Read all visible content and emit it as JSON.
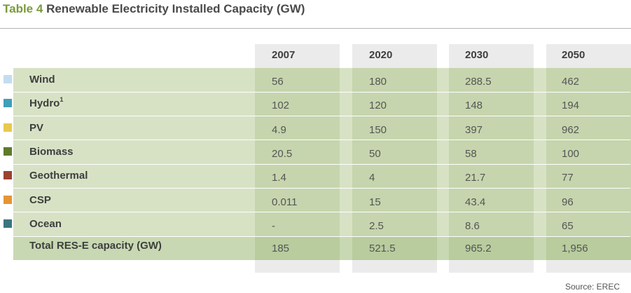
{
  "title": {
    "number": "Table 4",
    "text": "Renewable Electricity Installed Capacity (GW)"
  },
  "columns": [
    "2007",
    "2020",
    "2030",
    "2050"
  ],
  "rows": [
    {
      "label": "Wind",
      "sup": "",
      "color": "#c5dcef",
      "values": [
        "56",
        "180",
        "288.5",
        "462"
      ]
    },
    {
      "label": "Hydro",
      "sup": "1",
      "color": "#3fa0b8",
      "values": [
        "102",
        "120",
        "148",
        "194"
      ]
    },
    {
      "label": "PV",
      "sup": "",
      "color": "#e9c84f",
      "values": [
        "4.9",
        "150",
        "397",
        "962"
      ]
    },
    {
      "label": "Biomass",
      "sup": "",
      "color": "#5d7b2b",
      "values": [
        "20.5",
        "50",
        "58",
        "100"
      ]
    },
    {
      "label": "Geothermal",
      "sup": "",
      "color": "#9b4231",
      "values": [
        "1.4",
        "4",
        "21.7",
        "77"
      ]
    },
    {
      "label": "CSP",
      "sup": "",
      "color": "#e59533",
      "values": [
        "0.011",
        "15",
        "43.4",
        "96"
      ]
    },
    {
      "label": "Ocean",
      "sup": "",
      "color": "#3b7480",
      "values": [
        "-",
        "2.5",
        "8.6",
        "65"
      ]
    }
  ],
  "total": {
    "label": "Total RES-E capacity (GW)",
    "values": [
      "185",
      "521.5",
      "965.2",
      "1,956"
    ]
  },
  "source": "Source: EREC"
}
